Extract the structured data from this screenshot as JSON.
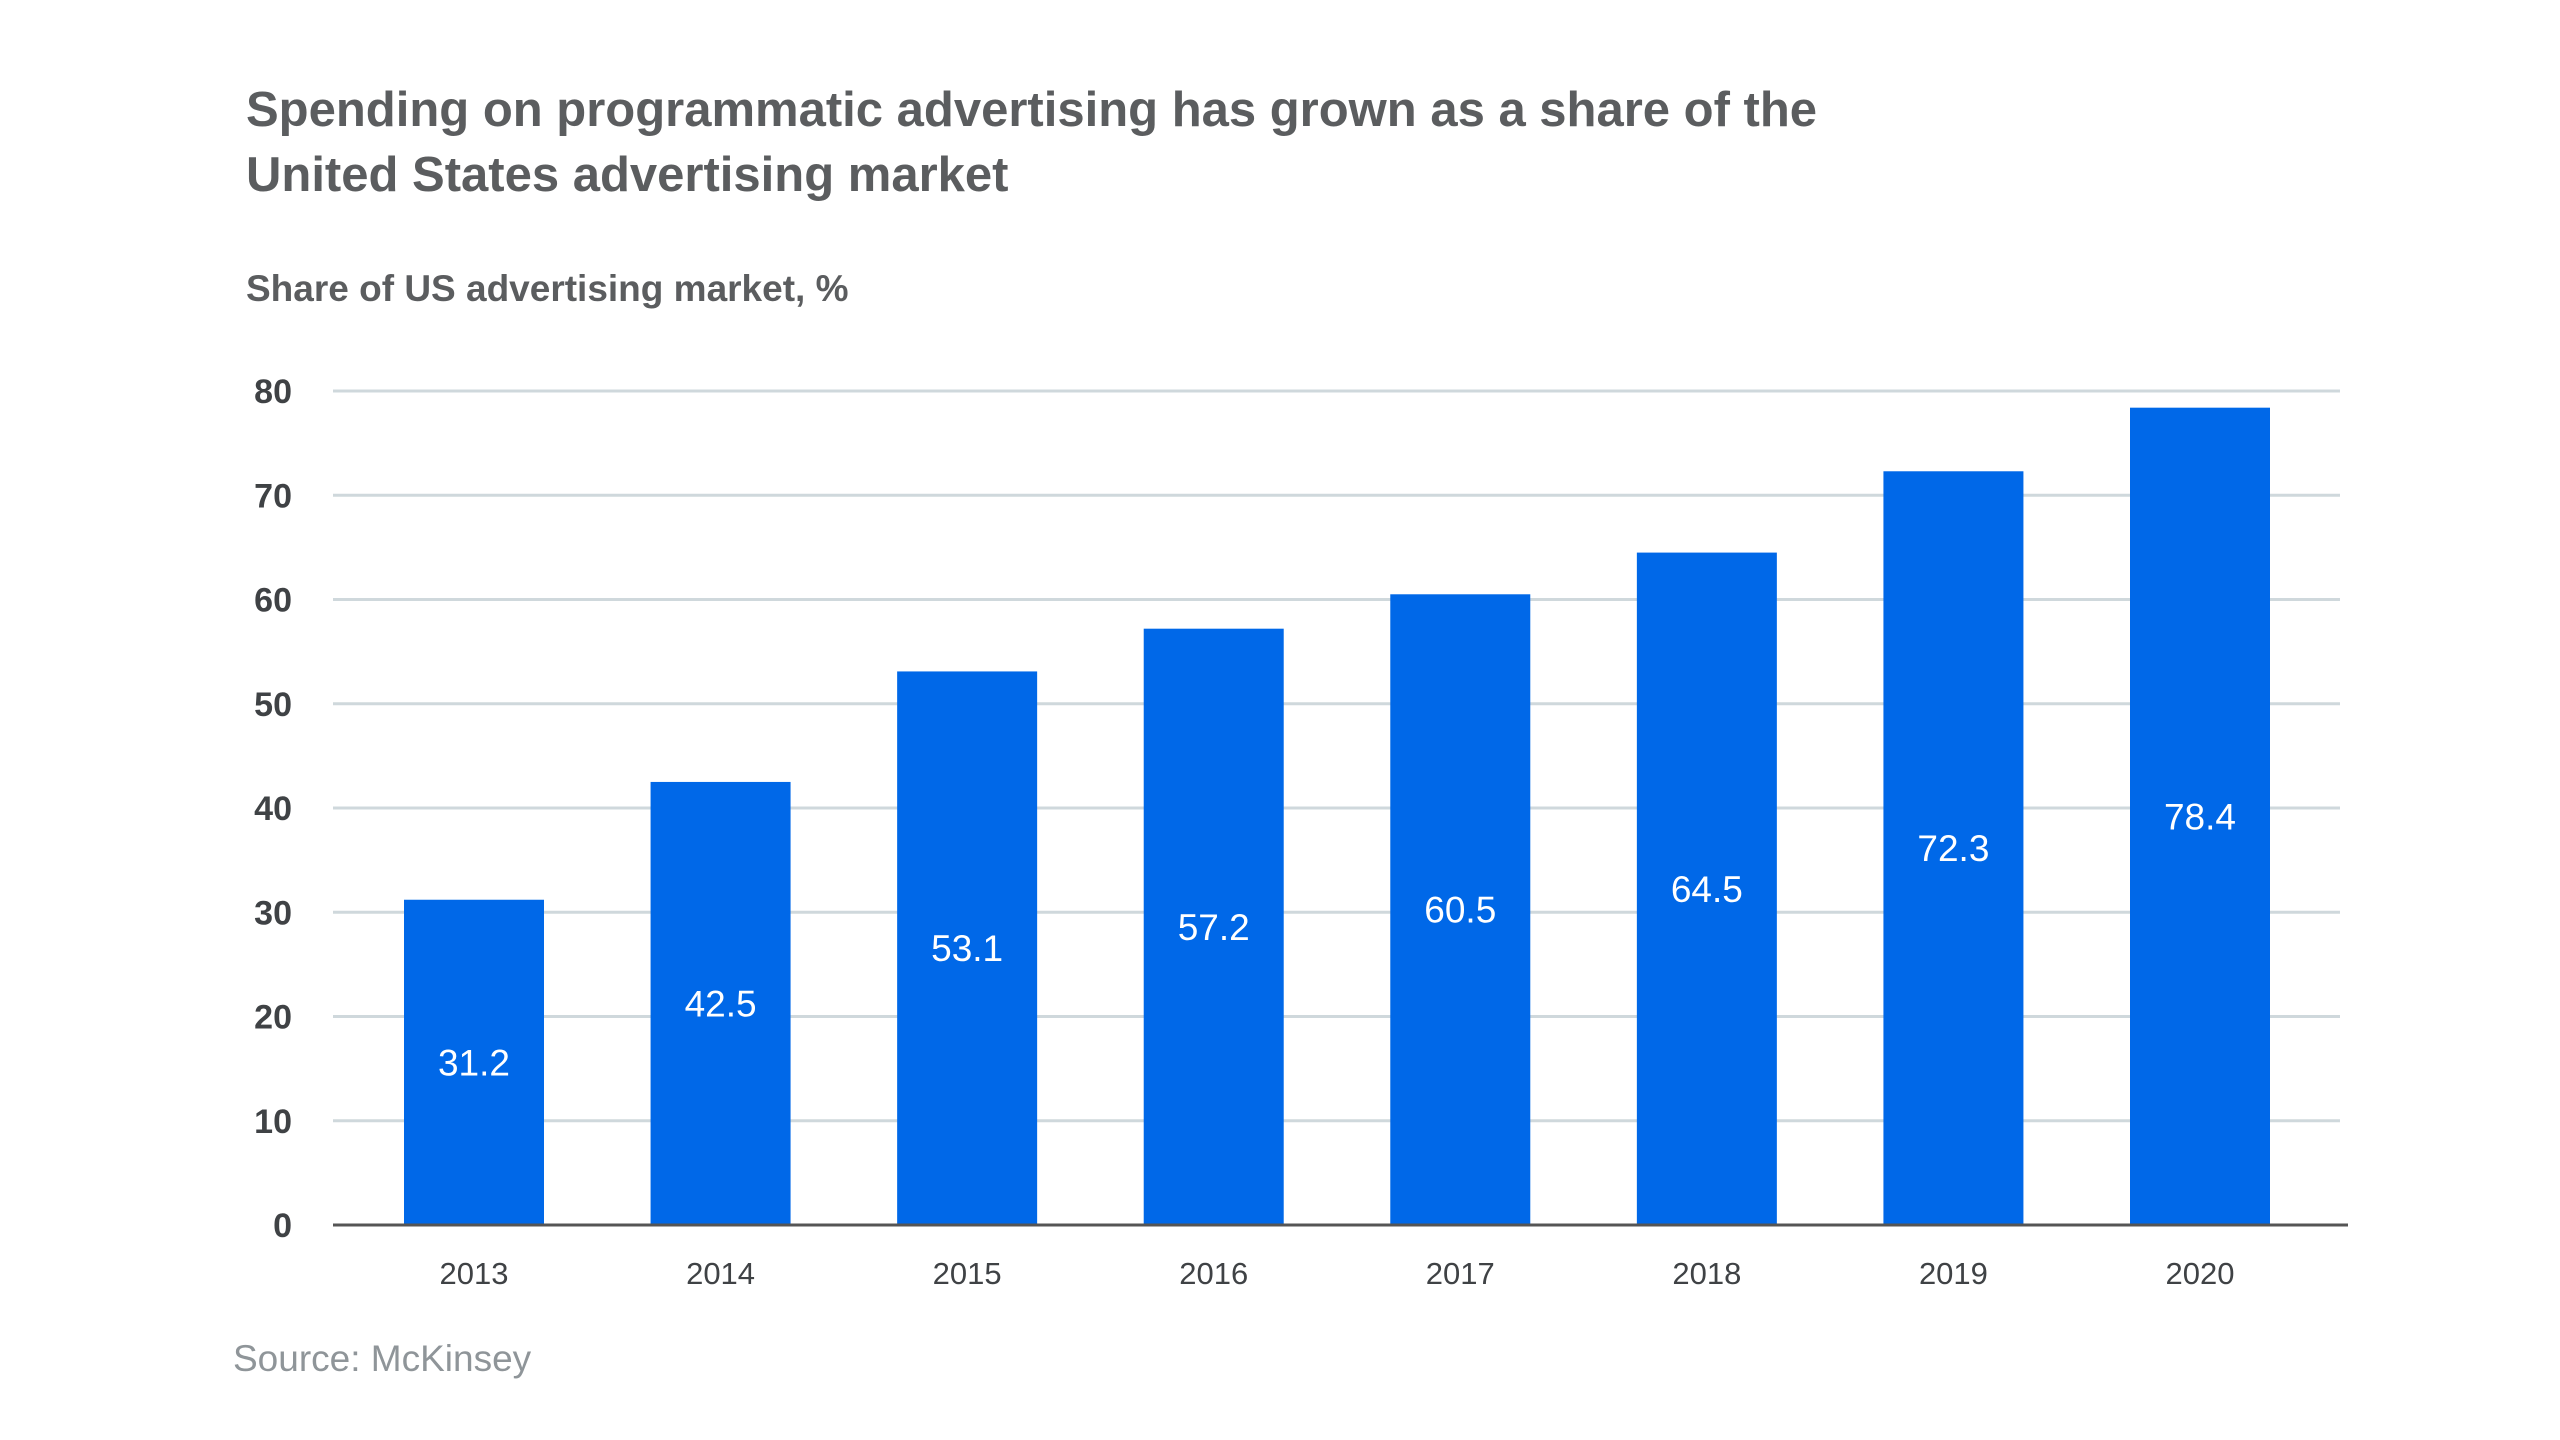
{
  "title": "Spending on programmatic advertising has grown as a share of the United States advertising market",
  "source": "Source: McKinsey",
  "colors": {
    "bar": "#0068e8",
    "grid": "#cfd8dc",
    "axis": "#555555"
  },
  "chart_data": {
    "type": "bar",
    "ylabel": "Share of US advertising market, %",
    "xlabel": "",
    "ylim": [
      0,
      80
    ],
    "yticks": [
      0,
      10,
      20,
      30,
      40,
      50,
      60,
      70,
      80
    ],
    "grid": true,
    "categories": [
      "2013",
      "2014",
      "2015",
      "2016",
      "2017",
      "2018",
      "2019",
      "2020"
    ],
    "values": [
      31.2,
      42.5,
      53.1,
      57.2,
      60.5,
      64.5,
      72.3,
      78.4
    ],
    "data_labels": [
      "31.2",
      "42.5",
      "53.1",
      "57.2",
      "60.5",
      "64.5",
      "72.3",
      "78.4"
    ]
  }
}
